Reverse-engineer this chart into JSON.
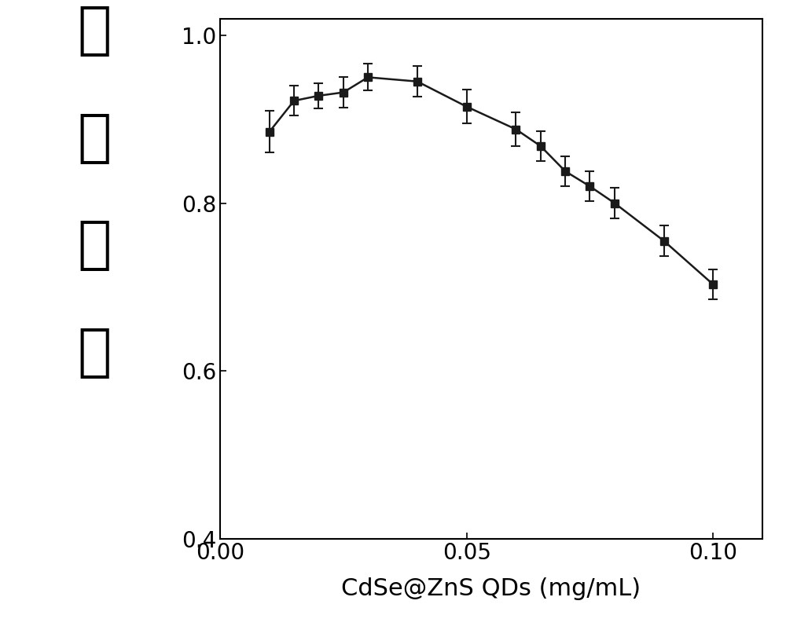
{
  "x": [
    0.01,
    0.015,
    0.02,
    0.025,
    0.03,
    0.04,
    0.05,
    0.06,
    0.065,
    0.07,
    0.075,
    0.08,
    0.09,
    0.1
  ],
  "y": [
    0.885,
    0.922,
    0.928,
    0.932,
    0.95,
    0.945,
    0.915,
    0.888,
    0.868,
    0.838,
    0.82,
    0.8,
    0.755,
    0.703
  ],
  "yerr": [
    0.025,
    0.018,
    0.015,
    0.018,
    0.016,
    0.018,
    0.02,
    0.02,
    0.018,
    0.018,
    0.018,
    0.018,
    0.018,
    0.018
  ],
  "xlabel": "CdSe@ZnS QDs (mg/mL)",
  "ylabel_chars": [
    "眠",
    "灬",
    "效",
    "率"
  ],
  "xlim": [
    0.0,
    0.11
  ],
  "ylim": [
    0.4,
    1.02
  ],
  "xticks": [
    0.0,
    0.05,
    0.1
  ],
  "yticks": [
    0.4,
    0.6,
    0.8,
    1.0
  ],
  "line_color": "#1a1a1a",
  "marker": "s",
  "markersize": 7,
  "linewidth": 1.8,
  "capsize": 4,
  "background_color": "#ffffff",
  "ylabel_fontsize": 52,
  "xlabel_fontsize": 22,
  "tick_fontsize": 20
}
